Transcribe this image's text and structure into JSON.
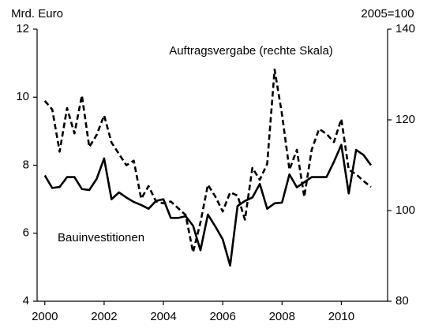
{
  "chart_data": {
    "type": "line",
    "y_label": "Mrd. Euro",
    "y2_label": "2005=100",
    "x": [
      2000,
      2000.25,
      2000.5,
      2000.75,
      2001,
      2001.25,
      2001.5,
      2001.75,
      2002,
      2002.25,
      2002.5,
      2002.75,
      2003,
      2003.25,
      2003.5,
      2003.75,
      2004,
      2004.25,
      2004.5,
      2004.75,
      2005,
      2005.25,
      2005.5,
      2005.75,
      2006,
      2006.25,
      2006.5,
      2006.75,
      2007,
      2007.25,
      2007.5,
      2007.75,
      2008,
      2008.25,
      2008.5,
      2008.75,
      2009,
      2009.25,
      2009.5,
      2009.75,
      2010,
      2010.25,
      2010.5,
      2010.75,
      2011
    ],
    "series": [
      {
        "name": "Bauinvestitionen",
        "color": "#000000",
        "dash": false,
        "values": [
          7.7,
          7.33,
          7.36,
          7.65,
          7.65,
          7.3,
          7.27,
          7.6,
          8.2,
          7.0,
          7.2,
          7.05,
          6.92,
          6.83,
          6.72,
          6.95,
          7.0,
          6.45,
          6.45,
          6.5,
          6.22,
          5.5,
          6.55,
          6.2,
          5.82,
          5.05,
          6.8,
          6.95,
          7.05,
          7.45,
          6.72,
          6.88,
          6.9,
          7.73,
          7.35,
          7.5,
          7.65,
          7.65,
          7.65,
          8.1,
          8.6,
          7.17,
          8.45,
          8.3,
          8.0
        ]
      },
      {
        "name": "Auftragsvergabe (rechte Skala)",
        "color": "#000000",
        "dash": true,
        "axis": "y2",
        "values": [
          124.2,
          122.3,
          113,
          122.6,
          117,
          125.4,
          114,
          116.7,
          121,
          115,
          112.5,
          110,
          111,
          102.6,
          105.4,
          102,
          101.6,
          102,
          100.5,
          99,
          90.8,
          97.4,
          105.7,
          103.1,
          99.8,
          104,
          103.3,
          98,
          109.4,
          106.8,
          110.3,
          131.1,
          121.2,
          109,
          113.4,
          103,
          113.4,
          118,
          116.9,
          115.1,
          120.2,
          109,
          108,
          106.5,
          105.2
        ]
      }
    ],
    "xlim": [
      1999.74,
      2011.56
    ],
    "xticks": [
      2000,
      2002,
      2004,
      2006,
      2008,
      2010
    ],
    "ylim": [
      4,
      12
    ],
    "yticks": [
      4,
      6,
      8,
      10,
      12
    ],
    "y2lim": [
      80,
      140
    ],
    "y2ticks": [
      80,
      100,
      120,
      140
    ],
    "grid": false
  }
}
